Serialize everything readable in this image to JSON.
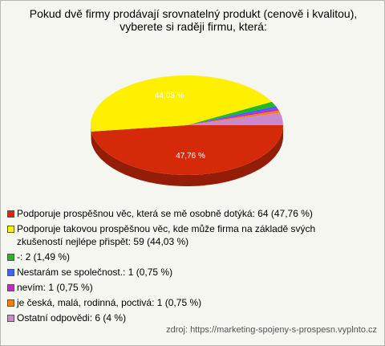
{
  "chart_data": {
    "type": "pie",
    "title": "Pokud dvě firmy prodávají srovnatelný produkt (cenově i kvalitou), vyberete si raději firmu, která:",
    "categories": [
      "Podporuje prospěšnou věc, která se mě osobně dotýká: 64 (47,76 %)",
      "Podporuje takovou prospěšnou věc, kde může firma na základě svých zkušeností nejlépe přispět: 59 (44,03 %)",
      "-: 2 (1,49 %)",
      "Nestarám se společnost.: 1 (0,75 %)",
      "nevím: 1 (0,75 %)",
      "je česká, malá, rodinná, poctivá: 1 (0,75 %)",
      "Ostatní odpovědi: 6 (4 %)"
    ],
    "values": [
      47.76,
      44.03,
      1.49,
      0.75,
      0.75,
      0.75,
      4
    ],
    "value_labels": [
      "47,76 %",
      "44,03 %",
      null,
      null,
      null,
      null,
      null
    ],
    "colors": [
      "#d42a0a",
      "#fff000",
      "#22b822",
      "#3a66f0",
      "#c824d0",
      "#f08010",
      "#cc88cc"
    ],
    "source": "zdroj: https://marketing-spojeny-s-prospesn.vyplnto.cz"
  }
}
